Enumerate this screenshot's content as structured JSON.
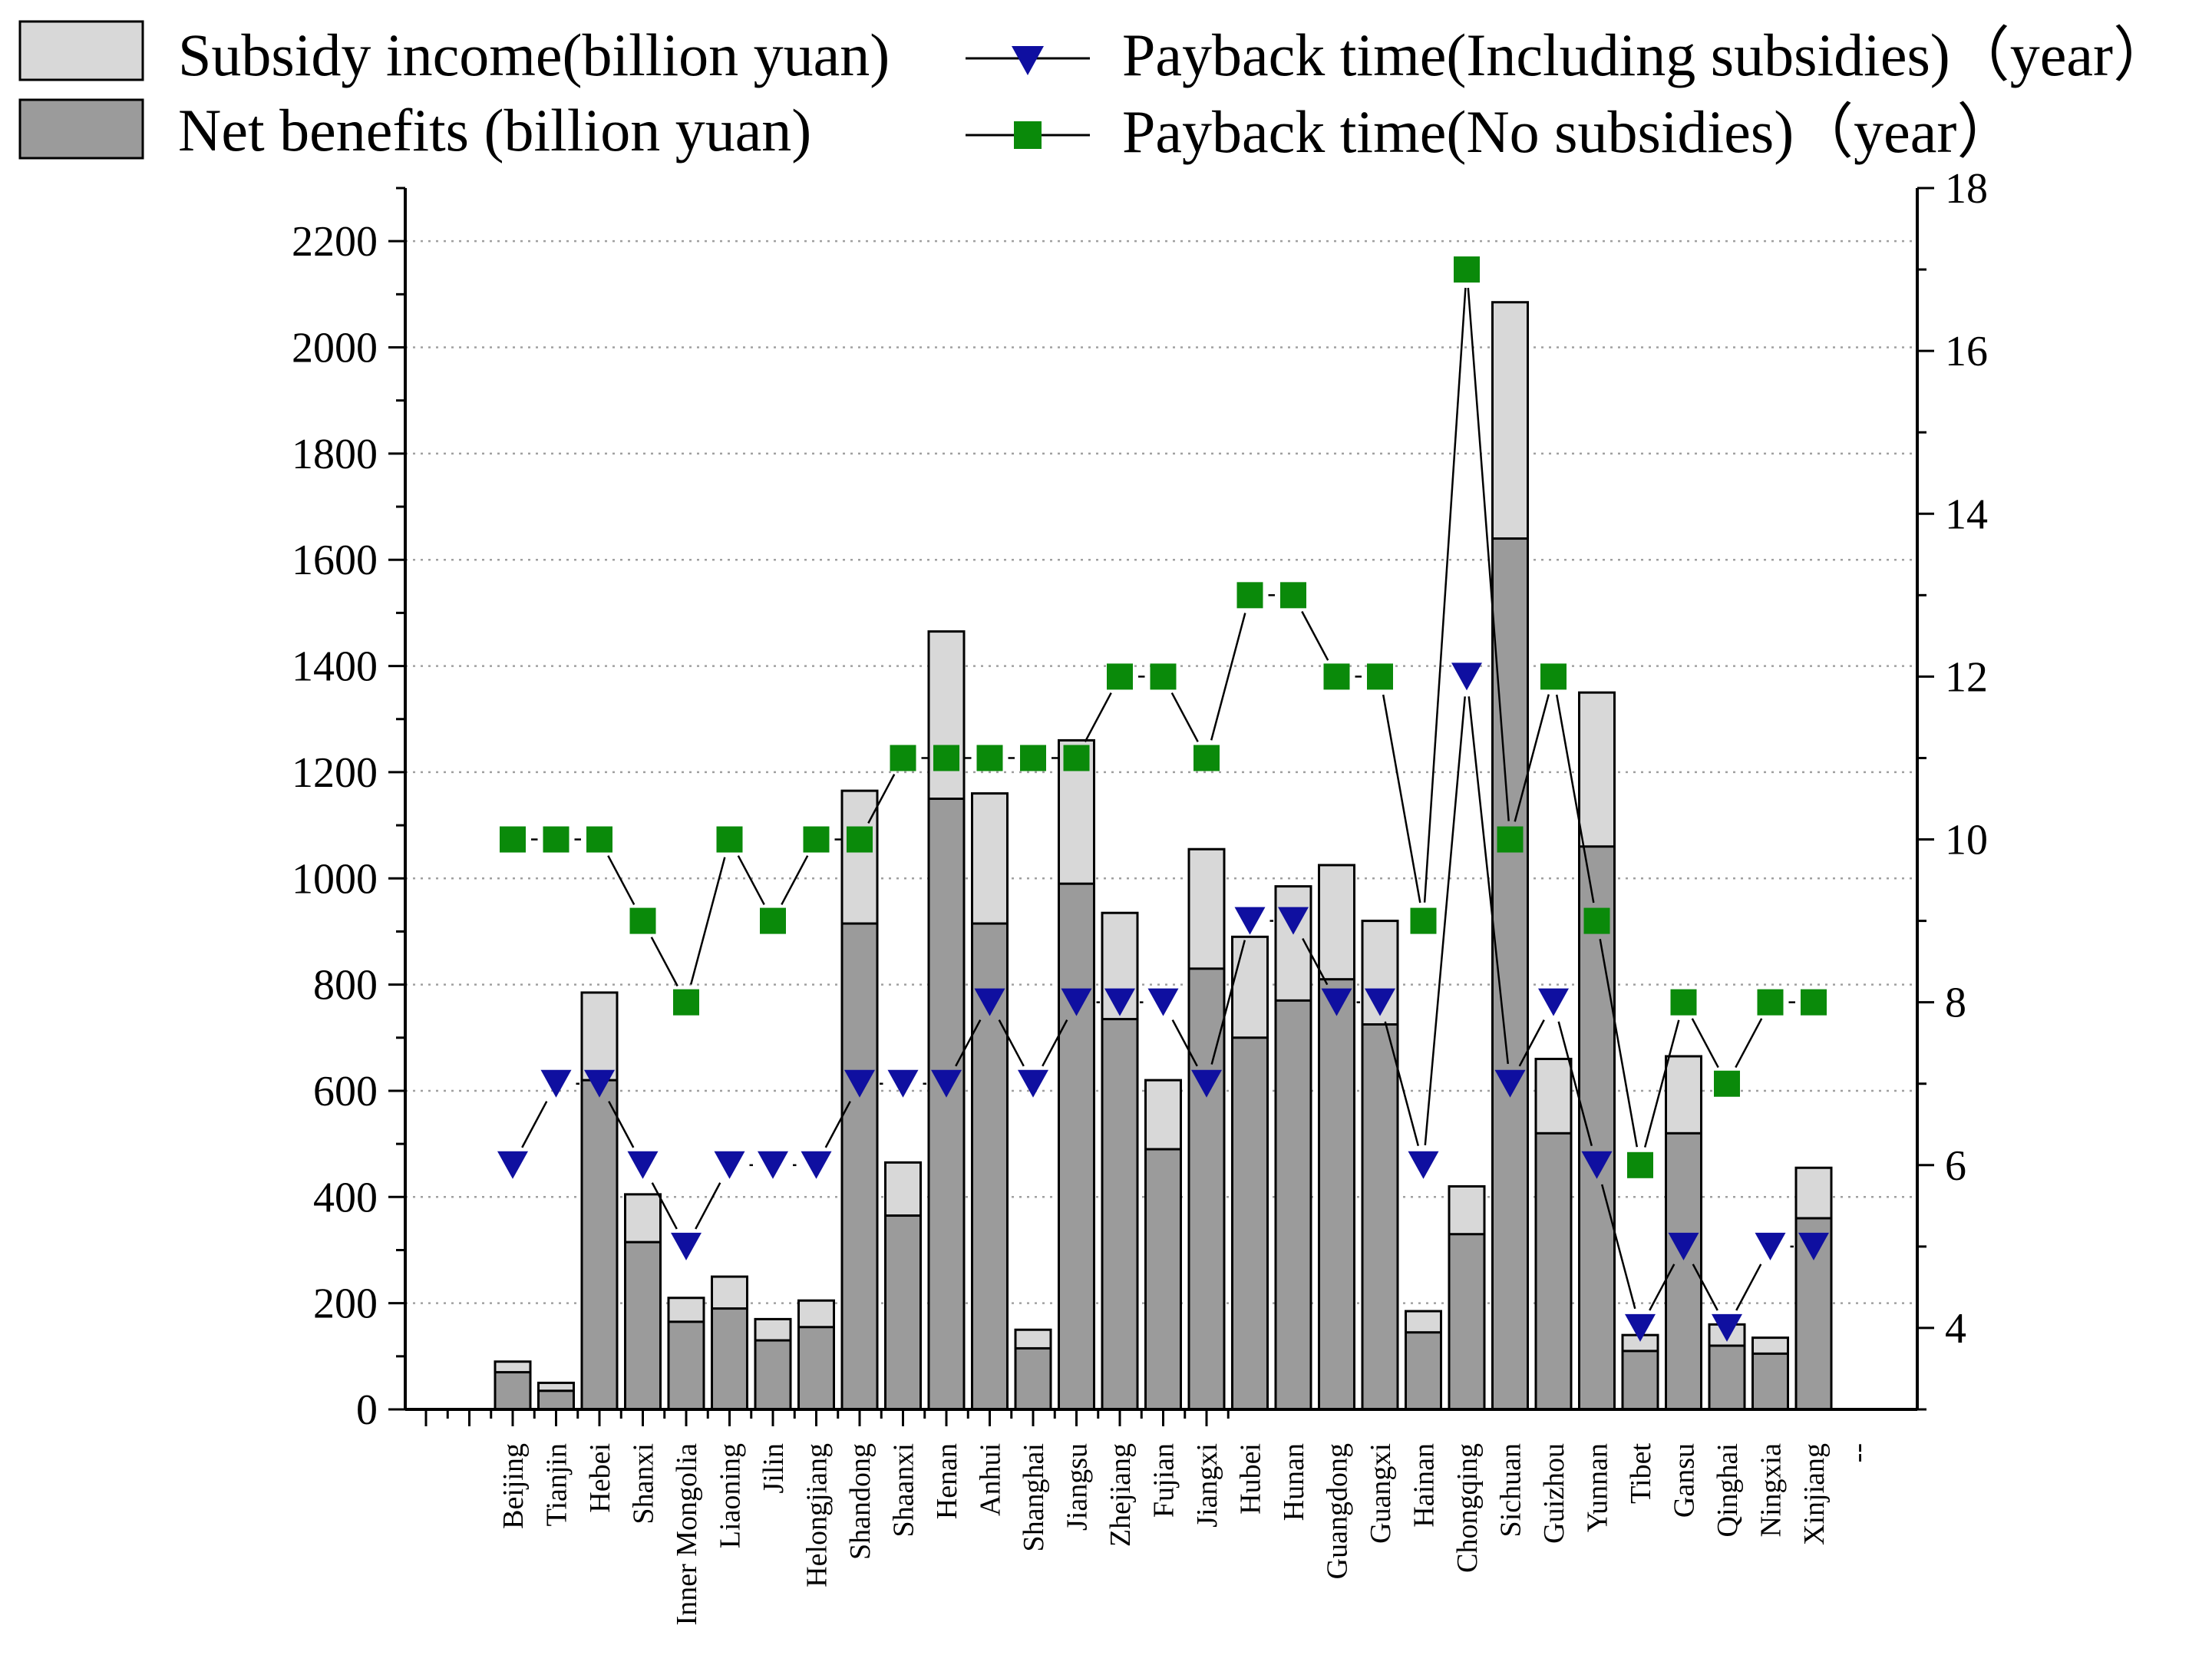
{
  "chart_data": {
    "type": "bar",
    "categories": [
      "Beijing",
      "Tianjin",
      "Hebei",
      "Shanxi",
      "Inner Mongolia",
      "Liaoning",
      "Jilin",
      "Helongjiang",
      "Shandong",
      "Shaanxi",
      "Henan",
      "Anhui",
      "Shanghai",
      "Jiangsu",
      "Zhejiang",
      "Fujian",
      "Jiangxi",
      "Hubei",
      "Hunan",
      "Guangdong",
      "Guangxi",
      "Hainan",
      "Chongqing",
      "Sichuan",
      "Guizhou",
      "Yunnan",
      "Tibet",
      "Gansu",
      "Qinghai",
      "Ningxia",
      "Xinjiang"
    ],
    "trailing_tick_label": "--",
    "series": [
      {
        "name": "Net benefits (billion yuan)",
        "kind": "bar",
        "axis": "left",
        "values": [
          70,
          35,
          620,
          315,
          165,
          190,
          130,
          155,
          915,
          365,
          1150,
          915,
          115,
          990,
          735,
          490,
          830,
          700,
          770,
          810,
          725,
          145,
          330,
          1640,
          520,
          1060,
          110,
          520,
          120,
          105,
          360
        ]
      },
      {
        "name": "Subsidy income(billion yuan)",
        "kind": "bar-stacked-top",
        "axis": "left",
        "totals": [
          90,
          50,
          785,
          405,
          210,
          250,
          170,
          205,
          1165,
          465,
          1465,
          1160,
          150,
          1260,
          935,
          620,
          1055,
          890,
          985,
          1025,
          920,
          185,
          420,
          2085,
          660,
          1350,
          140,
          665,
          160,
          135,
          455
        ]
      },
      {
        "name": "Payback time(Including subsidies)（year）",
        "kind": "line",
        "axis": "right",
        "values": [
          6,
          7,
          7,
          6,
          5,
          6,
          6,
          6,
          7,
          7,
          7,
          8,
          7,
          8,
          8,
          8,
          7,
          9,
          9,
          8,
          8,
          6,
          12,
          7,
          8,
          6,
          4,
          5,
          4,
          5,
          5
        ]
      },
      {
        "name": "Payback time(No subsidies)（year）",
        "kind": "line",
        "axis": "right",
        "values": [
          10,
          10,
          10,
          9,
          8,
          10,
          9,
          10,
          10,
          11,
          11,
          11,
          11,
          11,
          12,
          12,
          11,
          13,
          13,
          12,
          12,
          9,
          17,
          10,
          12,
          9,
          6,
          8,
          7,
          8,
          8
        ]
      }
    ],
    "left_axis": {
      "ylim": [
        0,
        2300
      ],
      "ticks": [
        "0",
        "200",
        "400",
        "600",
        "800",
        "1000",
        "1200",
        "1400",
        "1600",
        "1800",
        "2000",
        "2200"
      ]
    },
    "right_axis": {
      "ylim": [
        3,
        18
      ],
      "ticks": [
        "4",
        "6",
        "8",
        "10",
        "12",
        "14",
        "16",
        "18"
      ]
    },
    "legend": {
      "position": "top",
      "items": [
        {
          "label": "Subsidy income(billion yuan)",
          "symbol": "light-bar"
        },
        {
          "label": "Net benefits (billion yuan)",
          "symbol": "dark-bar"
        },
        {
          "label": "Payback time(Including subsidies)（year）",
          "symbol": "triangle-line"
        },
        {
          "label": "Payback time(No subsidies)（year）",
          "symbol": "square-line"
        }
      ]
    },
    "grid": "horizontal-dotted",
    "colors": {
      "subsidy_fill": "#d8d8d8",
      "net_fill": "#9b9b9b",
      "triangle": "#0f0fa0",
      "square": "#0a8a0a",
      "line": "#000000",
      "grid": "#a0a0a0"
    }
  }
}
